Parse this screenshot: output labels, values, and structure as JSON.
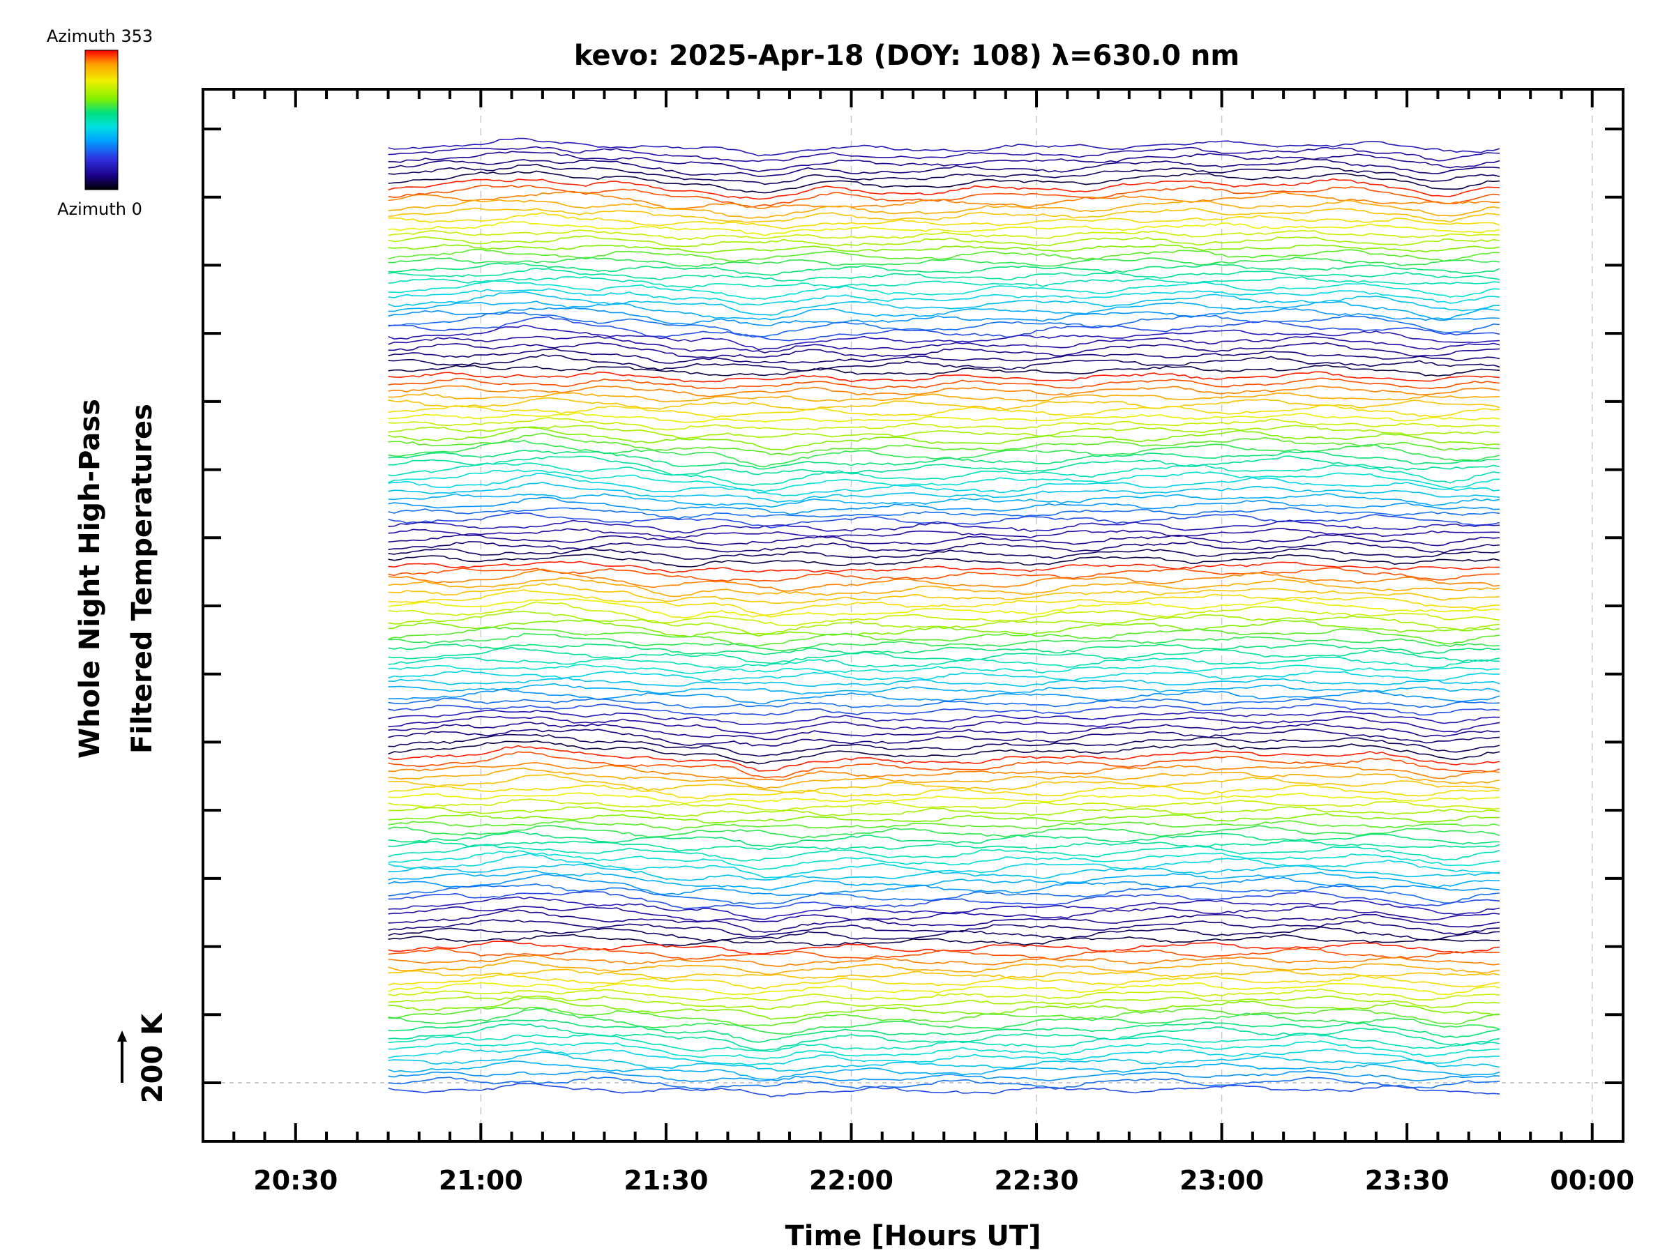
{
  "chart_data": {
    "type": "line",
    "title": "kevo: 2025-Apr-18 (DOY: 108) λ=630.0 nm",
    "xlabel": "Time [Hours UT]",
    "ylabel_line1": "Whole Night High-Pass",
    "ylabel_line2": "Filtered Temperatures",
    "x_unit": "hours UT",
    "xlim": [
      "20:15",
      "00:05"
    ],
    "data_range": [
      "20:45",
      "23:45"
    ],
    "x_ticks": [
      "20:30",
      "21:00",
      "21:30",
      "22:00",
      "22:30",
      "23:00",
      "23:30",
      "00:00"
    ],
    "x_gridlines": [
      "21:00",
      "22:00",
      "22:30",
      "23:00",
      "00:00"
    ],
    "scale_bar_label": "200 K",
    "series_count": 140,
    "azimuth_cycles": 5,
    "series_description": "Stacked high-pass filtered temperature traces, one per azimuth direction, colour-coded by azimuth, offset vertically",
    "colorbar": {
      "top_label": "Azimuth 353",
      "bottom_label": "Azimuth 0",
      "colormap": "rainbow",
      "colors": [
        "#000000",
        "#1a0088",
        "#3030e0",
        "#00a0ff",
        "#00e0e0",
        "#00e080",
        "#80f000",
        "#f0f000",
        "#ffa000",
        "#ff0000"
      ]
    },
    "grid": "dashed vertical at selected hours; dashed horizontal at 200 K reference"
  }
}
